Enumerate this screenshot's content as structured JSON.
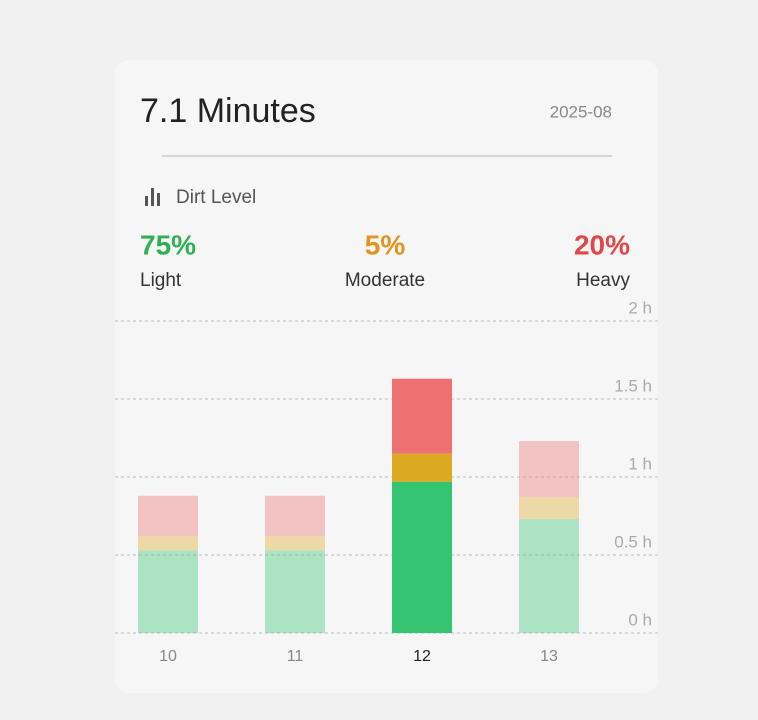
{
  "header": {
    "title": "7.1 Minutes",
    "date": "2025-08"
  },
  "section": {
    "title": "Dirt Level"
  },
  "stats": [
    {
      "value": "75%",
      "label": "Light",
      "color": "#2fb055"
    },
    {
      "value": "5%",
      "label": "Moderate",
      "color": "#e0951f"
    },
    {
      "value": "20%",
      "label": "Heavy",
      "color": "#e04848"
    }
  ],
  "chart_data": {
    "type": "stacked-bar",
    "categories": [
      "10",
      "11",
      "12",
      "13"
    ],
    "series": [
      {
        "name": "Light",
        "color": "#34c472",
        "values": [
          0.53,
          0.53,
          0.97,
          0.73
        ]
      },
      {
        "name": "Moderate",
        "color": "#dcaa22",
        "values": [
          0.09,
          0.09,
          0.18,
          0.14
        ]
      },
      {
        "name": "Heavy",
        "color": "#ee7070",
        "values": [
          0.26,
          0.26,
          0.48,
          0.36
        ]
      }
    ],
    "selected": 2,
    "ylim": [
      0,
      2
    ],
    "yticks": [
      {
        "value": 0,
        "label": "0 h"
      },
      {
        "value": 0.5,
        "label": "0.5 h"
      },
      {
        "value": 1,
        "label": "1 h"
      },
      {
        "value": 1.5,
        "label": "1.5 h"
      },
      {
        "value": 2,
        "label": "2 h"
      }
    ],
    "grid": true
  }
}
